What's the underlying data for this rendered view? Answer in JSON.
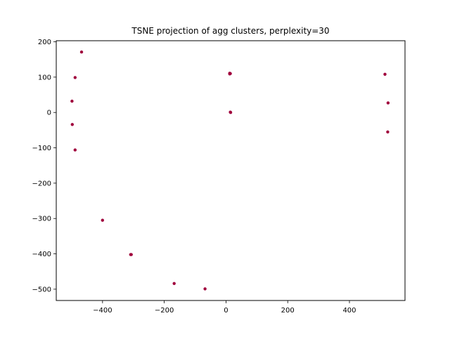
{
  "chart_data": {
    "type": "scatter",
    "title": "TSNE projection of agg clusters, perplexity=30",
    "xlabel": "",
    "ylabel": "",
    "xlim": [
      -550,
      580
    ],
    "ylim": [
      -532,
      203
    ],
    "xticks": [
      -400,
      -200,
      0,
      200,
      400
    ],
    "xtick_labels": [
      "−400",
      "−200",
      "0",
      "200",
      "400"
    ],
    "yticks": [
      200,
      100,
      0,
      -100,
      -200,
      -300,
      -400,
      -500
    ],
    "ytick_labels": [
      "200",
      "100",
      "0",
      "−100",
      "−200",
      "−300",
      "−400",
      "−500"
    ],
    "grid": false,
    "marker_color": "#a0003c",
    "points": [
      {
        "x": -468,
        "y": 171
      },
      {
        "x": -489,
        "y": 99
      },
      {
        "x": -499,
        "y": 32
      },
      {
        "x": -498,
        "y": -34
      },
      {
        "x": -489,
        "y": -106
      },
      {
        "x": -400,
        "y": -305
      },
      {
        "x": -309,
        "y": -402
      },
      {
        "x": -307,
        "y": -402
      },
      {
        "x": -168,
        "y": -484
      },
      {
        "x": -68,
        "y": -499
      },
      {
        "x": 12,
        "y": 111
      },
      {
        "x": 14,
        "y": 110
      },
      {
        "x": 12,
        "y": 109
      },
      {
        "x": 14,
        "y": 1
      },
      {
        "x": 15,
        "y": 0
      },
      {
        "x": 515,
        "y": 108
      },
      {
        "x": 525,
        "y": 27
      },
      {
        "x": 524,
        "y": -55
      }
    ]
  }
}
